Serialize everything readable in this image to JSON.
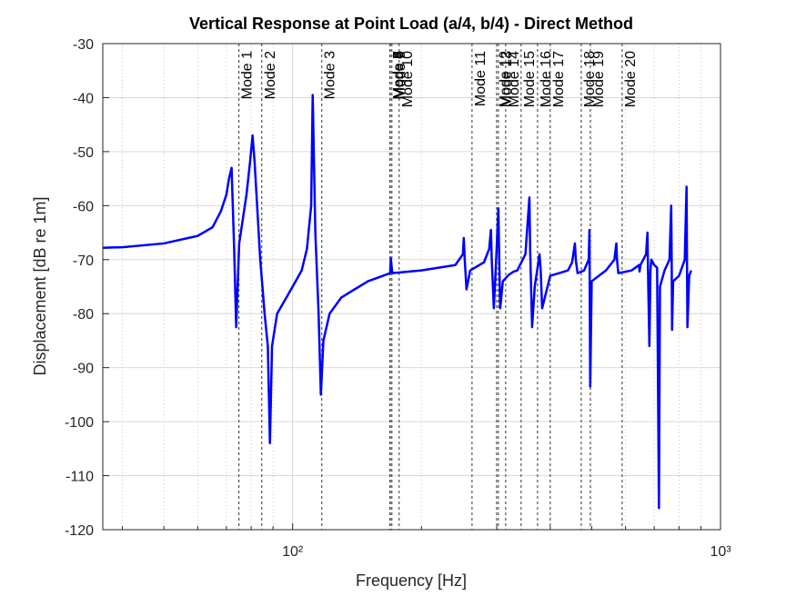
{
  "chart_data": {
    "type": "line",
    "title": "Vertical Response at Point Load (a/4, b/4) - Direct Method",
    "xlabel": "Frequency [Hz]",
    "ylabel": "Displacement [dB re 1m]",
    "xscale": "log",
    "grid": true,
    "color": "#0000ff",
    "xlim": [
      36,
      1000
    ],
    "ylim": [
      -120,
      -30
    ],
    "xticks": [
      {
        "value": 100,
        "label": "10²"
      },
      {
        "value": 1000,
        "label": "10³"
      }
    ],
    "xminorticks": [
      40,
      50,
      60,
      70,
      80,
      90,
      200,
      300,
      400,
      500,
      600,
      700,
      800,
      900
    ],
    "yticks": [
      -30,
      -40,
      -50,
      -60,
      -70,
      -80,
      -90,
      -100,
      -110,
      -120
    ],
    "x": [
      36,
      40,
      50,
      60,
      65,
      68,
      70,
      71,
      72,
      73,
      73.8,
      75,
      78,
      79.5,
      80.6,
      81.5,
      84,
      86,
      87.5,
      88.5,
      89.5,
      92,
      100,
      105,
      108,
      110.5,
      111.4,
      113,
      115,
      116.4,
      118,
      122,
      130,
      150,
      165,
      169,
      169.6,
      171,
      200,
      240,
      250,
      251.2,
      252.5,
      254.9,
      260,
      280,
      288,
      290.7,
      292,
      295.3,
      299,
      302.6,
      304,
      305.6,
      310,
      320,
      329,
      335,
      350,
      357.6,
      359,
      362.8,
      368,
      377.6,
      380,
      383,
      400,
      440,
      450,
      456.8,
      459,
      463.3,
      480,
      492,
      494,
      496,
      500,
      540,
      565,
      571,
      573,
      577,
      620,
      645,
      647,
      650,
      670,
      675,
      678,
      682,
      686,
      689,
      700,
      711,
      714,
      718,
      722,
      740,
      760,
      767,
      769,
      770.6,
      775,
      800,
      825,
      833,
      835,
      837,
      845,
      854
    ],
    "values": [
      -67.8,
      -67.7,
      -67,
      -65.6,
      -64,
      -61,
      -58,
      -55,
      -53,
      -68,
      -82.5,
      -67,
      -58,
      -52,
      -47,
      -52,
      -70,
      -80,
      -86,
      -104,
      -86,
      -80,
      -75,
      -72,
      -68,
      -60,
      -39.5,
      -65,
      -80,
      -95,
      -85,
      -80,
      -77,
      -74,
      -72.8,
      -72.5,
      -69.8,
      -72.5,
      -72,
      -71,
      -69,
      -66,
      -70,
      -75.5,
      -72,
      -70.5,
      -68,
      -64.5,
      -70,
      -79,
      -70,
      -60.5,
      -70,
      -79,
      -74,
      -72.8,
      -72.2,
      -72,
      -69,
      -58.5,
      -68,
      -82.5,
      -75,
      -69,
      -72,
      -79,
      -73,
      -72,
      -70.5,
      -67,
      -70,
      -72.5,
      -72,
      -70,
      -64.5,
      -93.5,
      -74,
      -72,
      -70,
      -67,
      -70,
      -72.5,
      -72,
      -71,
      -72.2,
      -71,
      -69,
      -65,
      -75,
      -86,
      -72,
      -70,
      -71,
      -71.5,
      -90,
      -116,
      -75,
      -72,
      -70,
      -60,
      -70,
      -83,
      -74,
      -73,
      -70,
      -56.5,
      -70,
      -82.5,
      -73,
      -72
    ],
    "mode_lines": [
      {
        "label": "Mode 1",
        "x": 74.9
      },
      {
        "label": "Mode 2",
        "x": 84.7
      },
      {
        "label": "Mode 3",
        "x": 117
      },
      {
        "label": "Mode 4",
        "x": 169
      },
      {
        "label": "Mode 5",
        "x": 169
      },
      {
        "label": "Mode 6",
        "x": 169
      },
      {
        "label": "Mode 7",
        "x": 169
      },
      {
        "label": "Mode 8",
        "x": 169
      },
      {
        "label": "Mode 9",
        "x": 170.6
      },
      {
        "label": "Mode 10",
        "x": 177.4
      },
      {
        "label": "Mode 11",
        "x": 262.6
      },
      {
        "label": "Mode 12",
        "x": 299.7
      },
      {
        "label": "Mode 13",
        "x": 302.6
      },
      {
        "label": "Mode 14",
        "x": 314.7
      },
      {
        "label": "Mode 15",
        "x": 342
      },
      {
        "label": "Mode 16",
        "x": 373.6
      },
      {
        "label": "Mode 17",
        "x": 400
      },
      {
        "label": "Mode 18",
        "x": 472.7
      },
      {
        "label": "Mode 19",
        "x": 496.3
      },
      {
        "label": "Mode 20",
        "x": 589
      }
    ]
  }
}
